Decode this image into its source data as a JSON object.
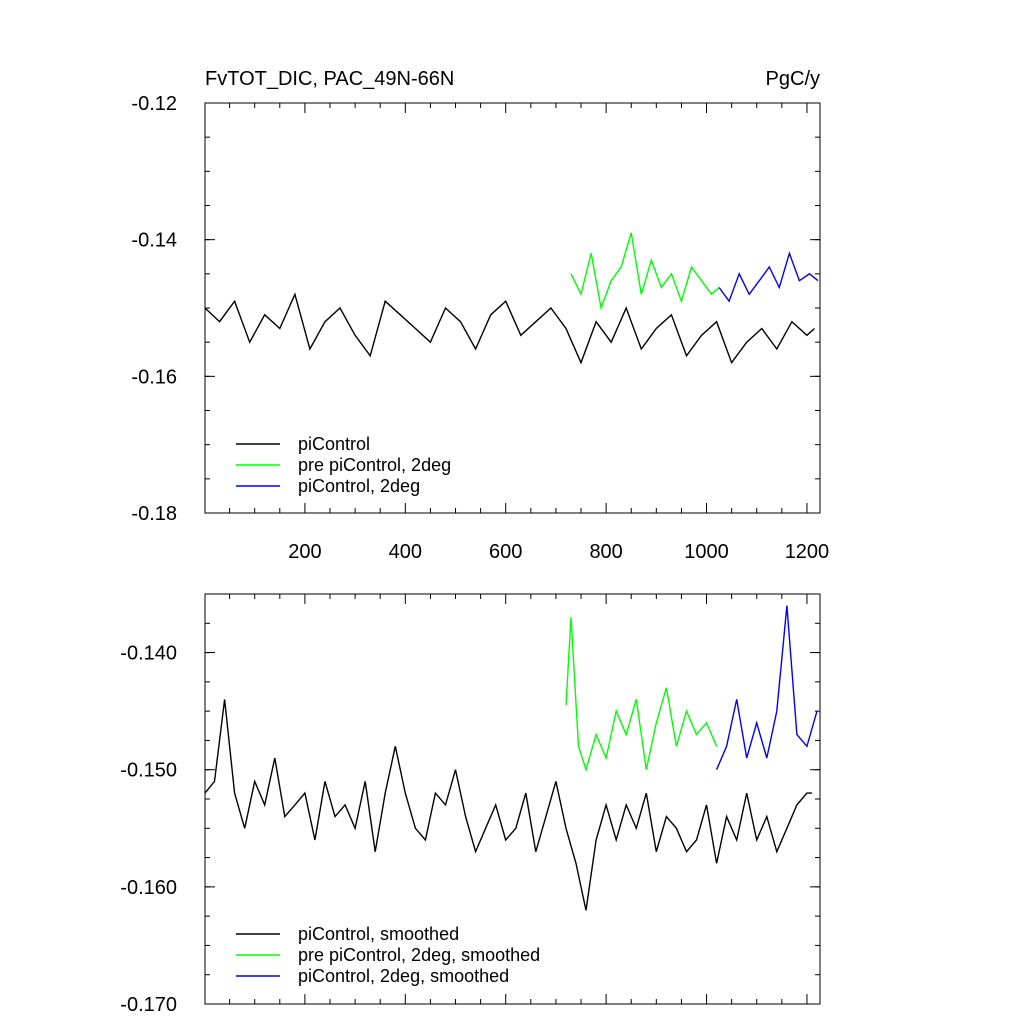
{
  "chart_data": [
    {
      "type": "line",
      "title_left": "FvTOT_DIC, PAC_49N-66N",
      "title_right": "PgC/y",
      "xlim": [
        1,
        1226
      ],
      "ylim": [
        -0.18,
        -0.12
      ],
      "xticks": [
        200,
        400,
        600,
        800,
        1000,
        1200
      ],
      "xtick_labels": [
        "200",
        "400",
        "600",
        "800",
        "1000",
        "1200"
      ],
      "yticks": [
        -0.18,
        -0.16,
        -0.14,
        -0.12
      ],
      "ytick_labels": [
        "-0.18",
        "-0.16",
        "-0.14",
        "-0.12"
      ],
      "legend": {
        "position": "bottom-left"
      },
      "series": [
        {
          "name": "piControl",
          "color": "#000000",
          "x": [
            1,
            30,
            60,
            90,
            120,
            150,
            180,
            210,
            240,
            270,
            300,
            330,
            360,
            390,
            420,
            450,
            480,
            510,
            540,
            570,
            600,
            630,
            660,
            690,
            720,
            750,
            780,
            810,
            840,
            870,
            900,
            930,
            960,
            990,
            1020,
            1050,
            1080,
            1110,
            1140,
            1170,
            1200,
            1215
          ],
          "y": [
            -0.15,
            -0.152,
            -0.149,
            -0.155,
            -0.151,
            -0.153,
            -0.148,
            -0.156,
            -0.152,
            -0.15,
            -0.154,
            -0.157,
            -0.149,
            -0.151,
            -0.153,
            -0.155,
            -0.15,
            -0.152,
            -0.156,
            -0.151,
            -0.149,
            -0.154,
            -0.152,
            -0.15,
            -0.153,
            -0.158,
            -0.152,
            -0.155,
            -0.15,
            -0.156,
            -0.153,
            -0.151,
            -0.157,
            -0.154,
            -0.152,
            -0.158,
            -0.155,
            -0.153,
            -0.156,
            -0.152,
            -0.154,
            -0.153
          ]
        },
        {
          "name": "pre piControl, 2deg",
          "color": "#00ff00",
          "x": [
            730,
            750,
            770,
            790,
            810,
            830,
            850,
            870,
            890,
            910,
            930,
            950,
            970,
            990,
            1010,
            1025
          ],
          "y": [
            -0.145,
            -0.148,
            -0.142,
            -0.15,
            -0.146,
            -0.144,
            -0.139,
            -0.148,
            -0.143,
            -0.147,
            -0.145,
            -0.149,
            -0.144,
            -0.146,
            -0.148,
            -0.147
          ]
        },
        {
          "name": "piControl, 2deg",
          "color": "#0000ff",
          "x": [
            1025,
            1045,
            1065,
            1085,
            1105,
            1125,
            1145,
            1165,
            1185,
            1205,
            1222
          ],
          "y": [
            -0.147,
            -0.149,
            -0.145,
            -0.148,
            -0.146,
            -0.144,
            -0.147,
            -0.142,
            -0.146,
            -0.145,
            -0.146
          ]
        }
      ]
    },
    {
      "type": "line",
      "xlim": [
        1,
        1226
      ],
      "ylim": [
        -0.17,
        -0.135
      ],
      "xticks": [
        200,
        400,
        600,
        800,
        1000,
        1200
      ],
      "yticks": [
        -0.17,
        -0.16,
        -0.15,
        -0.14
      ],
      "ytick_labels": [
        "-0.170",
        "-0.160",
        "-0.150",
        "-0.140"
      ],
      "legend": {
        "position": "bottom-left"
      },
      "series": [
        {
          "name": "piControl, smoothed",
          "color": "#000000",
          "x": [
            1,
            20,
            40,
            60,
            80,
            100,
            120,
            140,
            160,
            180,
            200,
            220,
            240,
            260,
            280,
            300,
            320,
            340,
            360,
            380,
            400,
            420,
            440,
            460,
            480,
            500,
            520,
            540,
            560,
            580,
            600,
            620,
            640,
            660,
            680,
            700,
            720,
            740,
            760,
            780,
            800,
            820,
            840,
            860,
            880,
            900,
            920,
            940,
            960,
            980,
            1000,
            1020,
            1040,
            1060,
            1080,
            1100,
            1120,
            1140,
            1160,
            1180,
            1200,
            1210
          ],
          "y": [
            -0.152,
            -0.151,
            -0.144,
            -0.152,
            -0.155,
            -0.151,
            -0.153,
            -0.149,
            -0.154,
            -0.153,
            -0.152,
            -0.156,
            -0.151,
            -0.154,
            -0.153,
            -0.155,
            -0.151,
            -0.157,
            -0.152,
            -0.148,
            -0.152,
            -0.155,
            -0.156,
            -0.152,
            -0.153,
            -0.15,
            -0.154,
            -0.157,
            -0.155,
            -0.153,
            -0.156,
            -0.155,
            -0.152,
            -0.157,
            -0.154,
            -0.151,
            -0.155,
            -0.158,
            -0.162,
            -0.156,
            -0.153,
            -0.156,
            -0.153,
            -0.155,
            -0.152,
            -0.157,
            -0.154,
            -0.155,
            -0.157,
            -0.156,
            -0.153,
            -0.158,
            -0.154,
            -0.156,
            -0.152,
            -0.156,
            -0.154,
            -0.157,
            -0.155,
            -0.153,
            -0.152,
            -0.152
          ]
        },
        {
          "name": "pre piControl, 2deg, smoothed",
          "color": "#00ff00",
          "x": [
            720,
            730,
            745,
            760,
            780,
            800,
            820,
            840,
            860,
            880,
            900,
            920,
            940,
            960,
            980,
            1000,
            1020
          ],
          "y": [
            -0.1445,
            -0.137,
            -0.148,
            -0.15,
            -0.147,
            -0.149,
            -0.145,
            -0.147,
            -0.144,
            -0.15,
            -0.146,
            -0.143,
            -0.148,
            -0.145,
            -0.147,
            -0.146,
            -0.148
          ]
        },
        {
          "name": "piControl, 2deg, smoothed",
          "color": "#0000ff",
          "x": [
            1020,
            1040,
            1060,
            1080,
            1100,
            1120,
            1140,
            1160,
            1180,
            1200,
            1220
          ],
          "y": [
            -0.15,
            -0.148,
            -0.144,
            -0.149,
            -0.146,
            -0.149,
            -0.145,
            -0.136,
            -0.147,
            -0.148,
            -0.145
          ]
        }
      ]
    }
  ]
}
